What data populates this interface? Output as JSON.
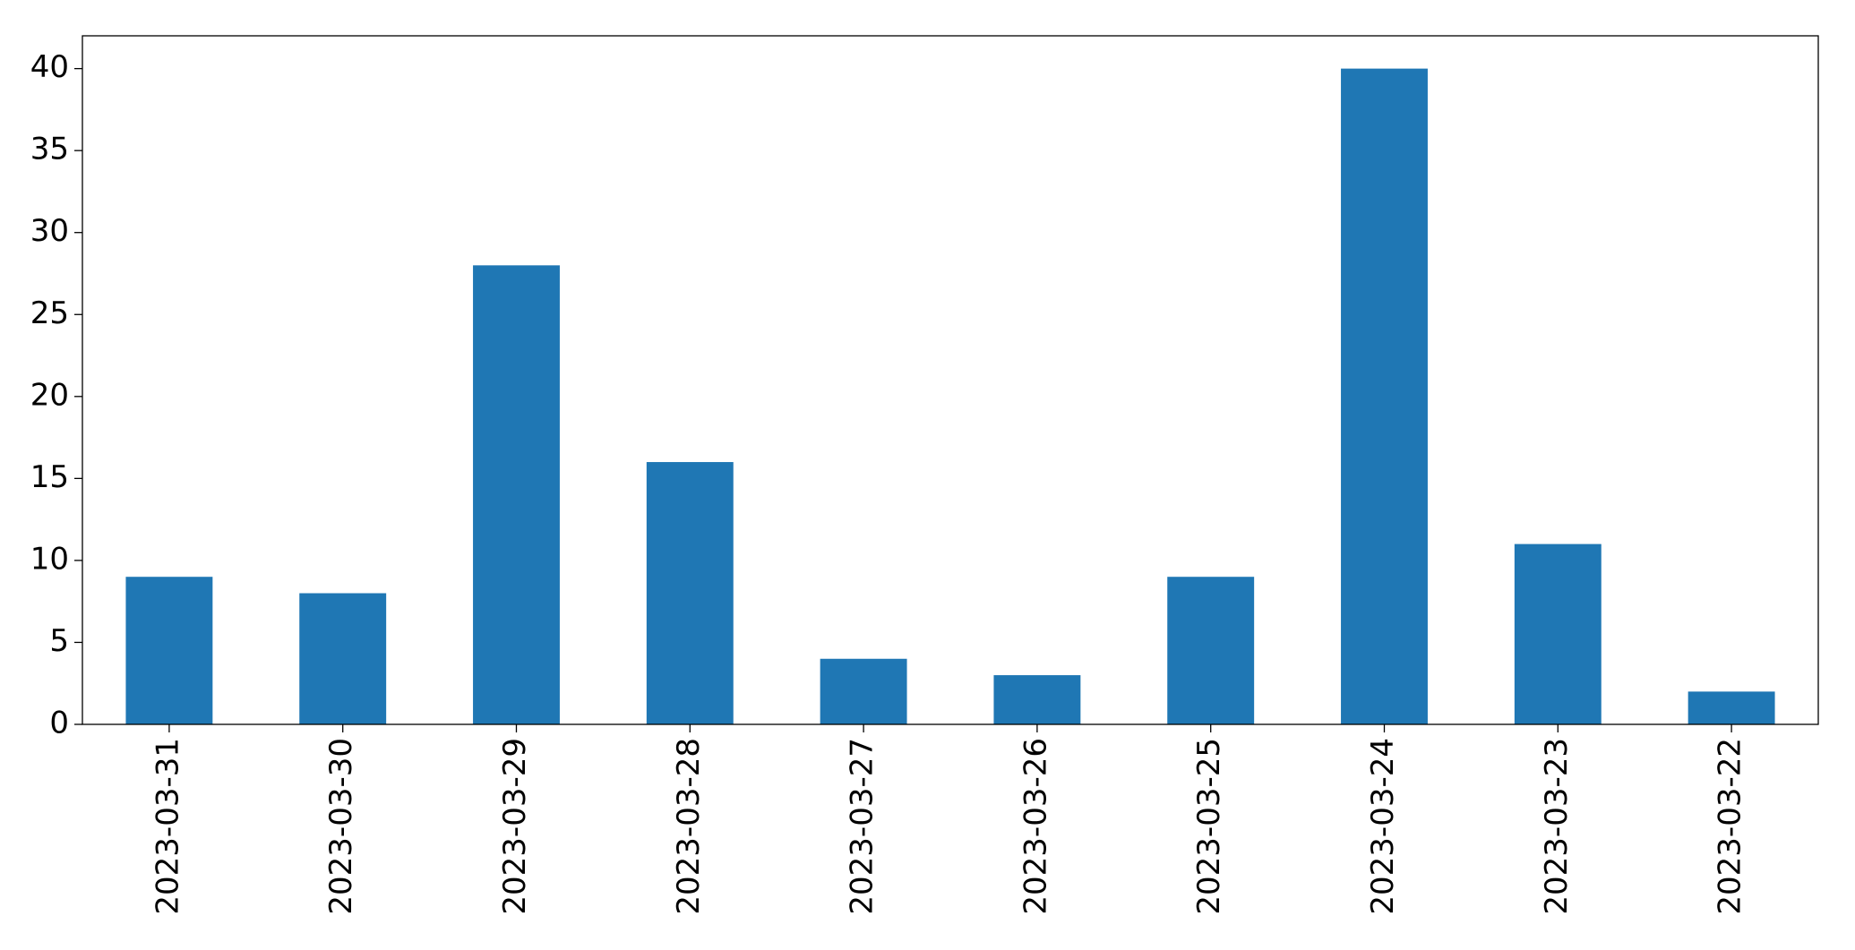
{
  "chart_data": {
    "type": "bar",
    "categories": [
      "2023-03-31",
      "2023-03-30",
      "2023-03-29",
      "2023-03-28",
      "2023-03-27",
      "2023-03-26",
      "2023-03-25",
      "2023-03-24",
      "2023-03-23",
      "2023-03-22"
    ],
    "values": [
      9,
      8,
      28,
      16,
      4,
      3,
      9,
      40,
      11,
      2
    ],
    "color": "#1f77b4",
    "ylim": [
      0,
      42
    ],
    "yticks": [
      0,
      5,
      10,
      15,
      20,
      25,
      30,
      35,
      40
    ],
    "grid": false
  }
}
